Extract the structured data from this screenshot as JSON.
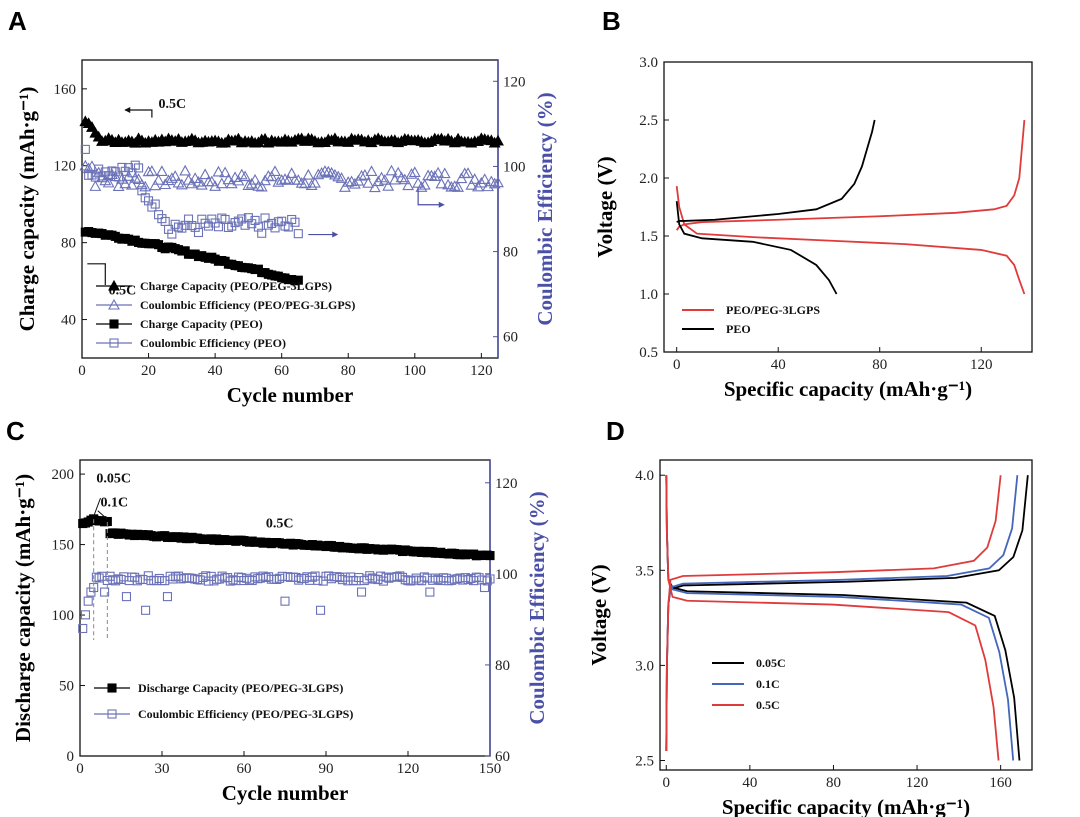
{
  "chart_data": [
    {
      "panel": "A",
      "type": "scatter",
      "xlabel": "Cycle number",
      "ylabel": "Charge capacity (mAh·g⁻¹)",
      "y2label": "Coulombic Efficiency (%)",
      "xlim": [
        0,
        125
      ],
      "ylim": [
        20,
        175
      ],
      "y2lim": [
        55,
        125
      ],
      "xticks": [
        "0",
        "20",
        "40",
        "60",
        "80",
        "100",
        "120"
      ],
      "yticks": [
        "40",
        "80",
        "120",
        "160"
      ],
      "y2ticks": [
        "60",
        "80",
        "100",
        "120"
      ],
      "annotations": [
        "0.5C",
        "0.5C"
      ],
      "series": [
        {
          "name": "Charge Capacity (PEO/PEG-3LGPS)",
          "axis": "left",
          "marker": "triangle-filled",
          "color": "#000000",
          "x_range": [
            1,
            125
          ],
          "start": [
            143,
            142,
            140,
            137,
            135
          ],
          "level": 133
        },
        {
          "name": "Coulombic Efficiency (PEO/PEG-3LGPS)",
          "axis": "right",
          "marker": "triangle-open",
          "color": "#6b72b8",
          "x_range": [
            1,
            125
          ],
          "level": 97
        },
        {
          "name": "Charge Capacity (PEO)",
          "axis": "left",
          "marker": "square-filled",
          "color": "#000000",
          "x_range": [
            1,
            65
          ],
          "start_value": 86,
          "end_value": 60
        },
        {
          "name": "Coulombic Efficiency (PEO)",
          "axis": "right",
          "marker": "square-open",
          "color": "#6b72b8",
          "x_range": [
            1,
            65
          ],
          "start_value": 100,
          "end_value": 85
        }
      ]
    },
    {
      "panel": "B",
      "type": "line",
      "xlabel": "Specific capacity (mAh·g⁻¹)",
      "ylabel": "Voltage (V)",
      "xlim": [
        -5,
        140
      ],
      "ylim": [
        0.5,
        3.0
      ],
      "xticks": [
        "0",
        "40",
        "80",
        "120"
      ],
      "yticks": [
        "0.5",
        "1.0",
        "1.5",
        "2.0",
        "2.5",
        "3.0"
      ],
      "series": [
        {
          "name": "PEO/PEG-3LGPS",
          "color": "#e03b3b",
          "charge": {
            "x": [
              0,
              1,
              3,
              10,
              40,
              80,
              110,
              125,
              130,
              133,
              135,
              136,
              137
            ],
            "y": [
              1.55,
              1.58,
              1.6,
              1.62,
              1.64,
              1.67,
              1.7,
              1.73,
              1.76,
              1.85,
              2.0,
              2.25,
              2.5
            ]
          },
          "discharge": {
            "x": [
              0,
              1,
              3,
              8,
              30,
              60,
              90,
              120,
              130,
              133,
              135,
              137
            ],
            "y": [
              1.93,
              1.75,
              1.6,
              1.52,
              1.49,
              1.46,
              1.43,
              1.38,
              1.33,
              1.25,
              1.12,
              1.0
            ]
          }
        },
        {
          "name": "PEO",
          "color": "#000000",
          "charge": {
            "x": [
              0,
              1,
              3,
              15,
              40,
              55,
              65,
              70,
              73,
              75,
              77,
              78
            ],
            "y": [
              1.62,
              1.63,
              1.63,
              1.64,
              1.69,
              1.73,
              1.82,
              1.95,
              2.1,
              2.25,
              2.4,
              2.5
            ]
          },
          "discharge": {
            "x": [
              0,
              1,
              3,
              10,
              30,
              45,
              55,
              60,
              63
            ],
            "y": [
              1.8,
              1.6,
              1.52,
              1.48,
              1.45,
              1.38,
              1.25,
              1.12,
              1.0
            ]
          }
        }
      ]
    },
    {
      "panel": "C",
      "type": "scatter",
      "xlabel": "Cycle number",
      "ylabel": "Discharge capacity (mAh·g⁻¹)",
      "y2label": "Coulombic Efficiency (%)",
      "xlim": [
        0,
        150
      ],
      "ylim": [
        0,
        210
      ],
      "y2lim": [
        60,
        125
      ],
      "xticks": [
        "0",
        "30",
        "60",
        "90",
        "120",
        "150"
      ],
      "yticks": [
        "0",
        "50",
        "100",
        "150",
        "200"
      ],
      "y2ticks": [
        "60",
        "80",
        "100",
        "120"
      ],
      "annotations": [
        "0.05C",
        "0.1C",
        "0.5C"
      ],
      "series": [
        {
          "name": "Discharge Capacity (PEO/PEG-3LGPS)",
          "axis": "left",
          "marker": "square-filled",
          "color": "#000000",
          "segments": [
            {
              "x_range": [
                1,
                5
              ],
              "from": 165,
              "to": 168
            },
            {
              "x_range": [
                5,
                10
              ],
              "from": 168,
              "to": 166
            },
            {
              "x_range": [
                11,
                150
              ],
              "from": 158,
              "to": 142
            }
          ]
        },
        {
          "name": "Coulombic Efficiency (PEO/PEG-3LGPS)",
          "axis": "right",
          "marker": "square-open",
          "color": "#6b72b8",
          "start": [
            88,
            91,
            94,
            96,
            97
          ],
          "level": 99,
          "dips": [
            [
              9,
              96
            ],
            [
              17,
              95
            ],
            [
              24,
              92
            ],
            [
              32,
              95
            ],
            [
              75,
              94
            ],
            [
              88,
              92
            ],
            [
              103,
              96
            ],
            [
              128,
              96
            ],
            [
              148,
              97
            ]
          ]
        }
      ]
    },
    {
      "panel": "D",
      "type": "line",
      "xlabel": "Specific capacity (mAh·g⁻¹)",
      "ylabel": "Voltage (V)",
      "xlim": [
        -3,
        175
      ],
      "ylim": [
        2.45,
        4.08
      ],
      "xticks": [
        "0",
        "40",
        "80",
        "120",
        "160"
      ],
      "yticks": [
        "2.5",
        "3.0",
        "3.5",
        "4.0"
      ],
      "series": [
        {
          "name": "0.05C",
          "color": "#000000",
          "charge_cap": 173,
          "discharge_cap": 169,
          "plateau_charge": 3.43,
          "plateau_discharge": 3.38
        },
        {
          "name": "0.1C",
          "color": "#4466bb",
          "charge_cap": 168,
          "discharge_cap": 166,
          "plateau_charge": 3.44,
          "plateau_discharge": 3.37
        },
        {
          "name": "0.5C",
          "color": "#e03b3b",
          "charge_cap": 160,
          "discharge_cap": 159,
          "plateau_charge": 3.48,
          "plateau_discharge": 3.33
        }
      ]
    }
  ]
}
